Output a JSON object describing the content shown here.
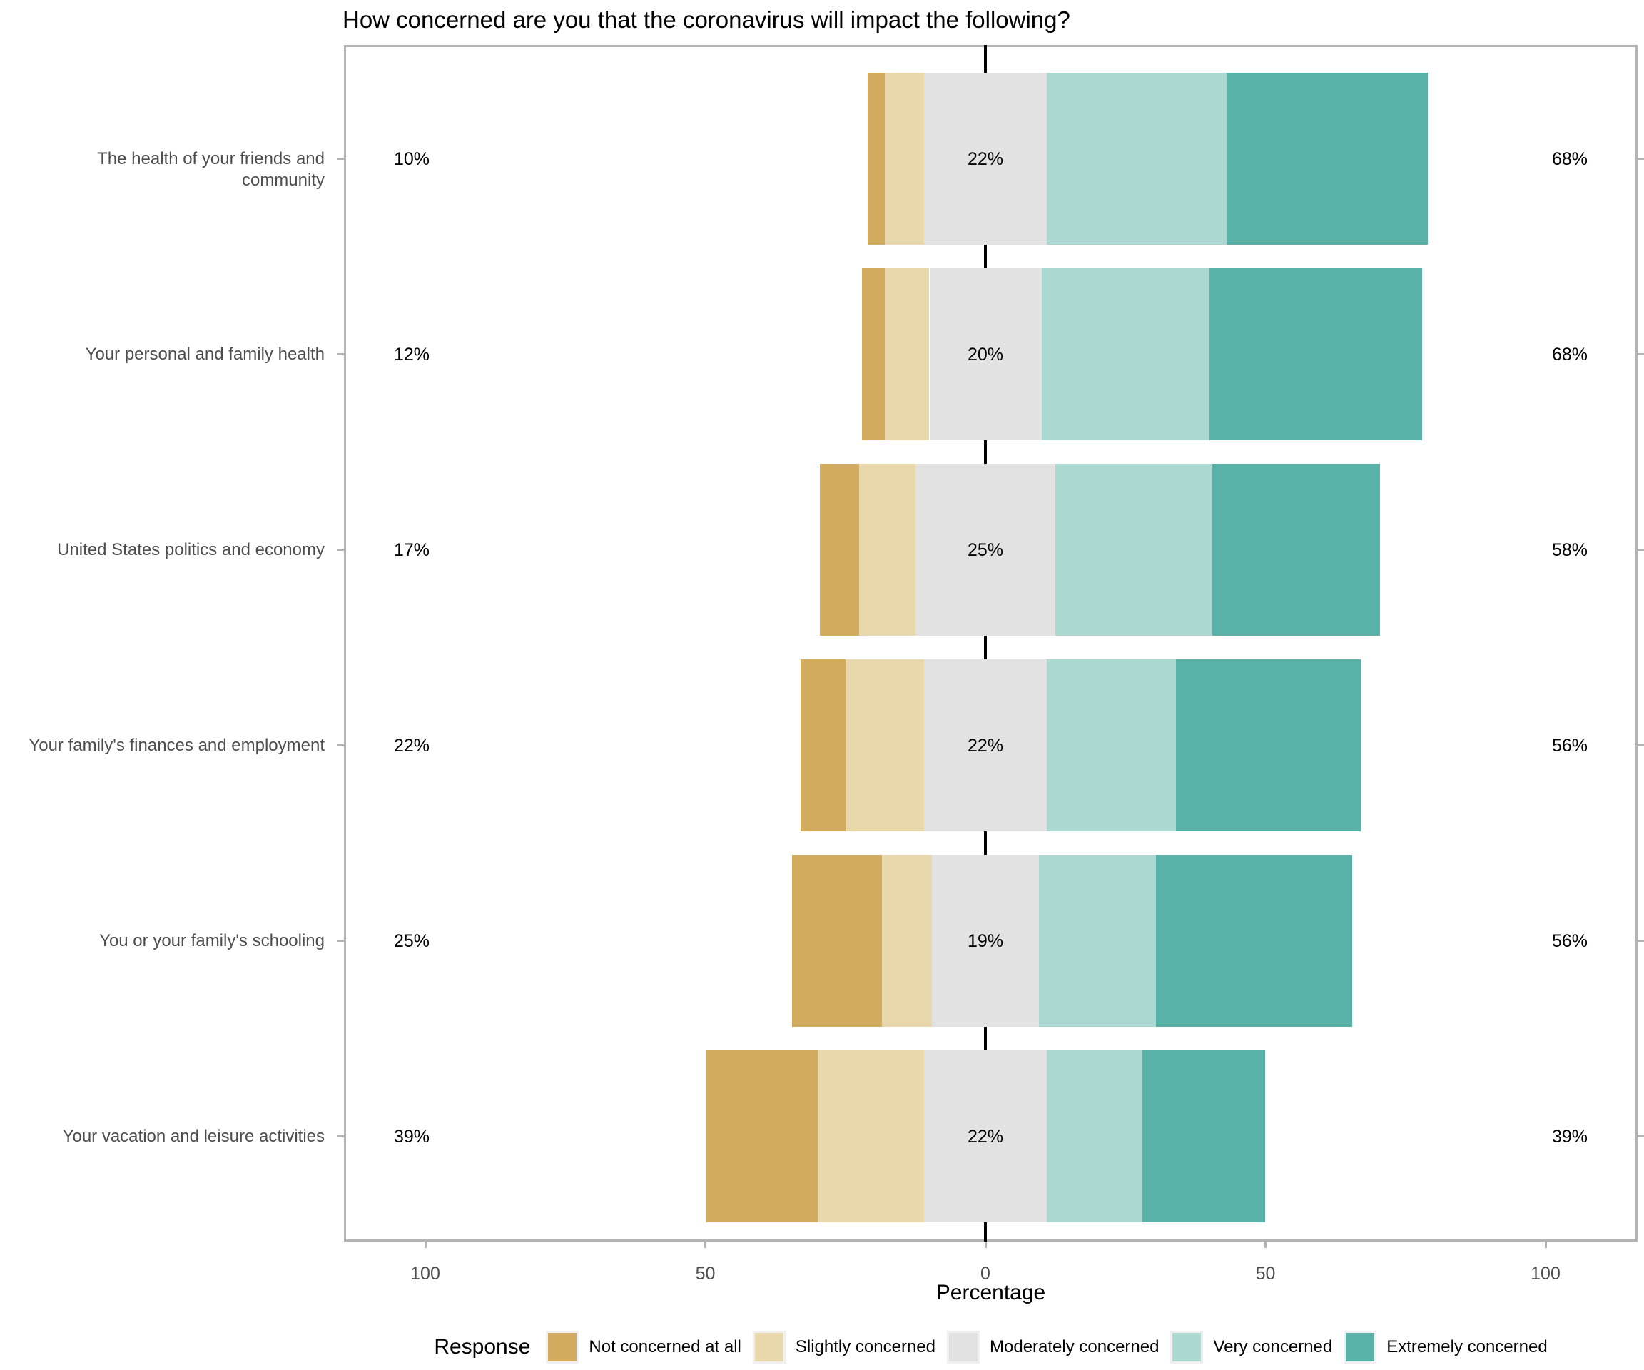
{
  "title": "How concerned are you that the coronavirus will impact the following?",
  "chart_data": {
    "type": "bar",
    "variant": "diverging-stacked-likert",
    "title": "How concerned are you that the coronavirus will impact the following?",
    "xlabel": "Percentage",
    "legend_title": "Response",
    "legend_position": "bottom",
    "grid": false,
    "xlim": [
      -114.5,
      116.5
    ],
    "x_ticks": [
      {
        "value": -100,
        "label": "100"
      },
      {
        "value": -50,
        "label": "50"
      },
      {
        "value": 0,
        "label": "0"
      },
      {
        "value": 50,
        "label": "50"
      },
      {
        "value": 100,
        "label": "100"
      }
    ],
    "series": [
      {
        "name": "Not concerned at all",
        "color": "#d2ab5f"
      },
      {
        "name": "Slightly concerned",
        "color": "#e8d8ac"
      },
      {
        "name": "Moderately concerned",
        "color": "#e2e2e2"
      },
      {
        "name": "Very concerned",
        "color": "#acd8d2"
      },
      {
        "name": "Extremely concerned",
        "color": "#59b2a8"
      }
    ],
    "categories": [
      "The health of your friends and community",
      "Your personal and family health",
      "United States politics and economy",
      "Your family's finances and employment",
      "You or your family's schooling",
      "Your vacation and leisure activities"
    ],
    "rows": [
      {
        "category": "The health of your friends and community",
        "values": [
          3,
          7,
          22,
          32,
          36
        ],
        "left_label": "10%",
        "center_label": "22%",
        "right_label": "68%"
      },
      {
        "category": "Your personal and family health",
        "values": [
          4,
          8,
          20,
          30,
          38
        ],
        "left_label": "12%",
        "center_label": "20%",
        "right_label": "68%"
      },
      {
        "category": "United States politics and economy",
        "values": [
          7,
          10,
          25,
          28,
          30
        ],
        "left_label": "17%",
        "center_label": "25%",
        "right_label": "58%"
      },
      {
        "category": "Your family's finances and employment",
        "values": [
          8,
          14,
          22,
          23,
          33
        ],
        "left_label": "22%",
        "center_label": "22%",
        "right_label": "56%"
      },
      {
        "category": "You or your family's schooling",
        "values": [
          16,
          9,
          19,
          21,
          35
        ],
        "left_label": "25%",
        "center_label": "19%",
        "right_label": "56%"
      },
      {
        "category": "Your vacation and leisure activities",
        "values": [
          20,
          19,
          22,
          17,
          22
        ],
        "left_label": "39%",
        "center_label": "22%",
        "right_label": "39%"
      }
    ],
    "colors": {
      "axis_text": "#4d4d4d",
      "panel_border": "#b3b3b3",
      "zero_line": "#000000",
      "value_labels": "#000000",
      "background": "#ffffff"
    }
  }
}
